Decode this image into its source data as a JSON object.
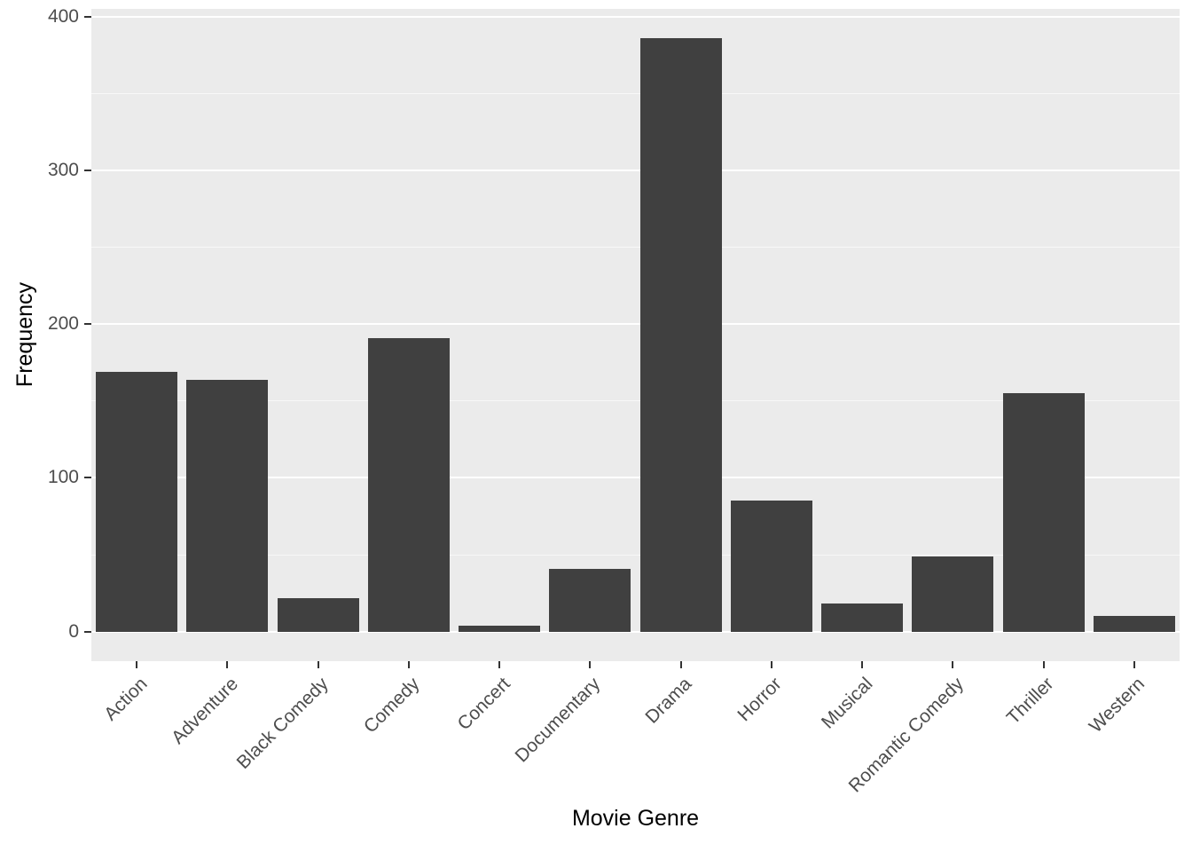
{
  "chart_data": {
    "type": "bar",
    "title": "",
    "xlabel": "Movie Genre",
    "ylabel": "Frequency",
    "categories": [
      "Action",
      "Adventure",
      "Black Comedy",
      "Comedy",
      "Concert",
      "Documentary",
      "Drama",
      "Horror",
      "Musical",
      "Romantic Comedy",
      "Thriller",
      "Western"
    ],
    "values": [
      169,
      164,
      22,
      191,
      4,
      41,
      386,
      85,
      18,
      49,
      155,
      10
    ],
    "ylim": [
      0,
      400
    ],
    "yticks": [
      0,
      100,
      200,
      300,
      400
    ],
    "minor_gridlines": [
      50,
      150,
      250,
      350
    ],
    "grid": "on",
    "legend_position": "none",
    "bar_color": "#404040",
    "panel_background": "#EBEBEB",
    "gridline_color": "#FFFFFF",
    "tick_label_color": "#4D4D4D",
    "axis_title_color": "#000000",
    "bar_width_fraction": 0.9
  }
}
